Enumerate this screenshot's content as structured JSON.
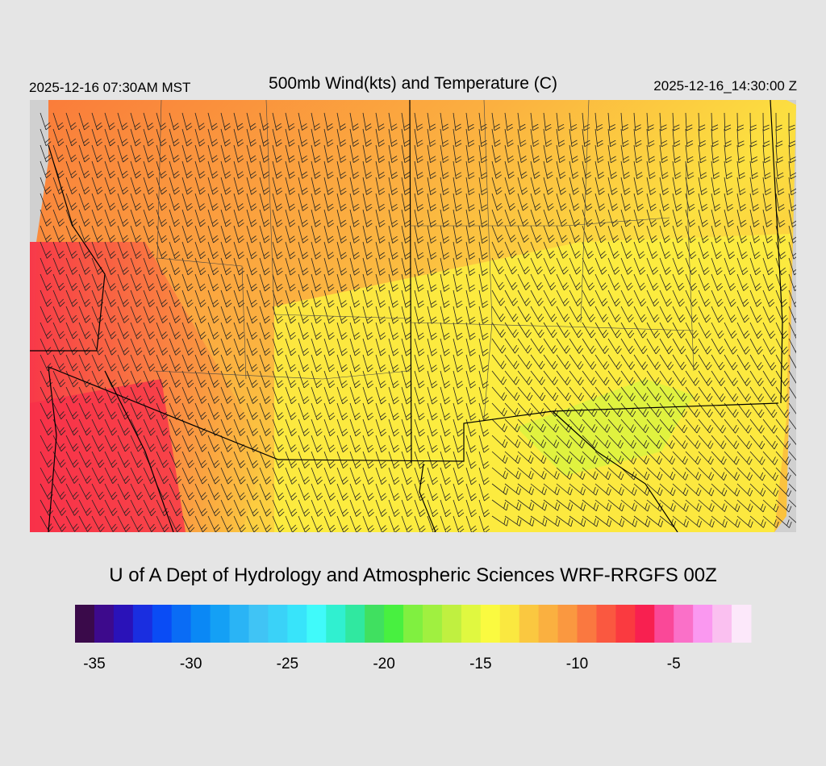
{
  "header": {
    "left": "2025-12-16 07:30AM MST",
    "title": "500mb Wind(kts) and Temperature (C)",
    "right": "2025-12-16_14:30:00 Z"
  },
  "credit": "U of A Dept of Hydrology and Atmospheric Sciences WRF-RRGFS 00Z",
  "colorbar": {
    "lim": [
      -36,
      -1
    ],
    "ticks": [
      -35,
      -30,
      -25,
      -20,
      -15,
      -10,
      -5
    ],
    "colors": [
      "#3a0a4a",
      "#3d0a8c",
      "#2a12b8",
      "#1a2ee0",
      "#0a4cf5",
      "#0a6cf5",
      "#0a88f5",
      "#14a0f5",
      "#2ab4f5",
      "#40c4f5",
      "#3ad2f8",
      "#38e4fa",
      "#40fafa",
      "#30f0d0",
      "#30e8a0",
      "#40e060",
      "#48f040",
      "#80f040",
      "#a0f040",
      "#c0f040",
      "#e0f840",
      "#fafa40",
      "#fae840",
      "#fac840",
      "#fab040",
      "#fa9840",
      "#fa7840",
      "#fa5840",
      "#fa3a40",
      "#f82050",
      "#fa4898",
      "#fa70c8",
      "#fa98f0",
      "#fac0f0",
      "#fce8fa"
    ]
  }
}
